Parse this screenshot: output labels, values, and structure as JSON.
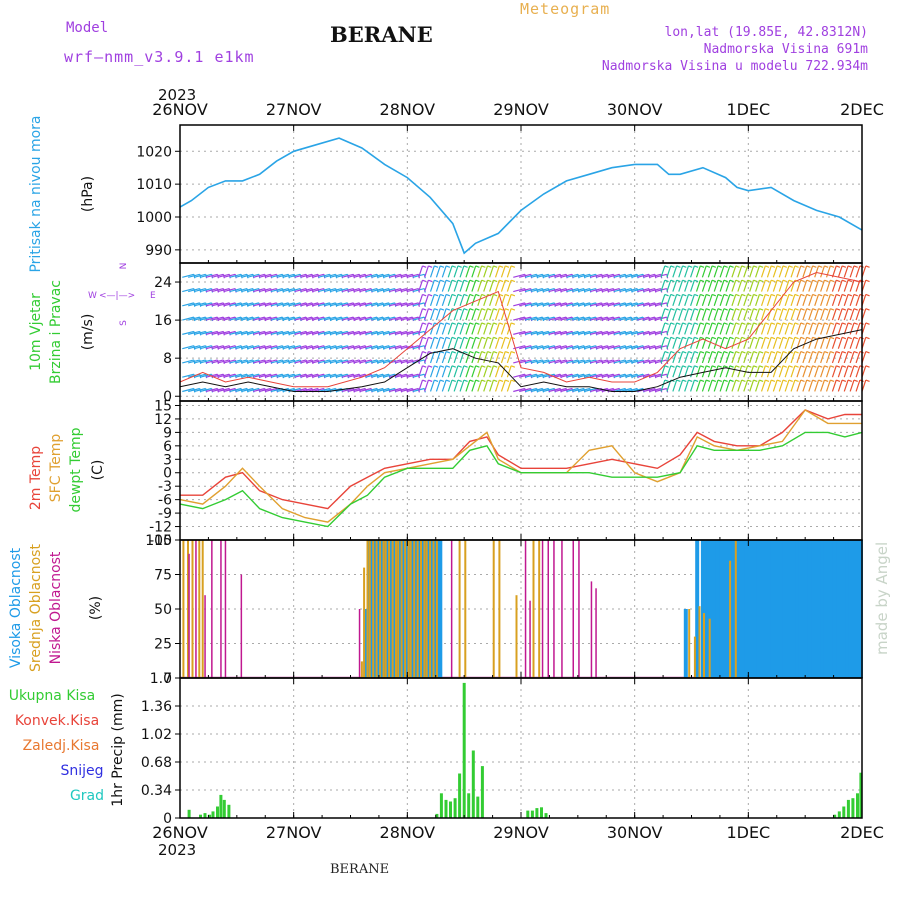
{
  "header": {
    "model_label": "Model",
    "model_value": "wrf—nmm_v3.9.1 e1km",
    "city": "BERANE",
    "meteogram": "Meteogram",
    "lonlat": "lon,lat (19.85E, 42.8312N)",
    "altitude": "Nadmorska Visina 691m",
    "model_altitude": "Nadmorska Visina u modelu 722.934m",
    "year_top": "2023",
    "year_bottom": "2023",
    "footer": "BERANE",
    "watermark": "made by Angel"
  },
  "x_axis": {
    "ticks": [
      "26NOV",
      "27NOV",
      "28NOV",
      "29NOV",
      "30NOV",
      "1DEC",
      "2DEC"
    ]
  },
  "colors": {
    "pressure": "#2aa4e6",
    "t2m": "#e8443a",
    "tsfc": "#e0a030",
    "dewpt": "#33cc33",
    "high_cloud": "#1e9be8",
    "mid_cloud": "#d8a020",
    "low_cloud": "#c01890",
    "precip": "#33cc33",
    "purple": "#a040e0"
  },
  "chart_data": [
    {
      "type": "line",
      "panel": "pressure",
      "ylabels": [
        "Pritisak na nivou mora",
        "(hPa)"
      ],
      "yticks": [
        990,
        1000,
        1010,
        1020
      ],
      "ylim": [
        986,
        1028
      ],
      "series": [
        {
          "x": [
            0,
            0.1,
            0.25,
            0.4,
            0.55,
            0.7,
            0.85,
            1.0,
            1.2,
            1.4,
            1.6,
            1.8,
            2.0,
            2.2,
            2.4,
            2.5,
            2.6,
            2.8,
            3.0,
            3.2,
            3.4,
            3.6,
            3.8,
            4.0,
            4.2,
            4.3,
            4.4,
            4.6,
            4.8,
            4.9,
            5.0,
            5.2,
            5.4,
            5.6,
            5.8,
            6.0
          ],
          "y": [
            1003,
            1005,
            1009,
            1011,
            1011,
            1013,
            1017,
            1020,
            1022,
            1024,
            1021,
            1016,
            1012,
            1006,
            998,
            989,
            992,
            995,
            1002,
            1007,
            1011,
            1013,
            1015,
            1016,
            1016,
            1013,
            1013,
            1015,
            1012,
            1009,
            1008,
            1009,
            1005,
            1002,
            1000,
            996
          ]
        }
      ]
    },
    {
      "type": "line",
      "panel": "wind",
      "ylabels": [
        "10m Vjetar",
        "Brzina i Pravac",
        "(m/s)"
      ],
      "compass": [
        "W",
        "<—|—>",
        "E",
        "S",
        "N"
      ],
      "yticks": [
        0,
        8,
        16,
        24
      ],
      "ylim": [
        -1,
        28
      ],
      "series": [
        {
          "name": "speed",
          "x": [
            0,
            0.2,
            0.4,
            0.6,
            0.8,
            1.0,
            1.3,
            1.6,
            1.8,
            2.0,
            2.2,
            2.4,
            2.6,
            2.8,
            3.0,
            3.2,
            3.4,
            3.6,
            3.8,
            4.0,
            4.2,
            4.4,
            4.6,
            4.8,
            5.0,
            5.2,
            5.4,
            5.6,
            5.8,
            6.0
          ],
          "y": [
            2,
            3,
            2,
            3,
            2,
            1,
            1,
            2,
            3,
            6,
            9,
            10,
            8,
            7,
            2,
            3,
            2,
            2,
            1,
            1,
            2,
            4,
            5,
            6,
            5,
            5,
            10,
            12,
            13,
            14
          ]
        },
        {
          "name": "gust",
          "x": [
            0,
            0.2,
            0.4,
            0.6,
            0.8,
            1.0,
            1.3,
            1.6,
            1.8,
            2.0,
            2.2,
            2.4,
            2.6,
            2.8,
            3.0,
            3.2,
            3.4,
            3.6,
            3.8,
            4.0,
            4.2,
            4.4,
            4.6,
            4.8,
            5.0,
            5.2,
            5.4,
            5.6,
            5.8,
            6.0
          ],
          "y": [
            3,
            5,
            3,
            4,
            3,
            2,
            2,
            4,
            6,
            10,
            14,
            18,
            20,
            22,
            6,
            5,
            3,
            4,
            3,
            3,
            5,
            10,
            12,
            10,
            12,
            18,
            24,
            26,
            25,
            24
          ]
        }
      ]
    },
    {
      "type": "line",
      "panel": "temperature",
      "ylabels": [
        "2m Temp",
        "SFC Temp",
        "dewpt Temp",
        "(C)"
      ],
      "yticks": [
        -15,
        -12,
        -9,
        -6,
        -3,
        0,
        3,
        6,
        9,
        12,
        15
      ],
      "ylim": [
        -15,
        16
      ],
      "series": [
        {
          "name": "2m Temp",
          "x": [
            0,
            0.2,
            0.4,
            0.55,
            0.7,
            0.9,
            1.1,
            1.3,
            1.5,
            1.65,
            1.8,
            2.0,
            2.2,
            2.4,
            2.55,
            2.7,
            2.8,
            3.0,
            3.2,
            3.4,
            3.6,
            3.8,
            4.0,
            4.2,
            4.4,
            4.55,
            4.7,
            4.9,
            5.1,
            5.3,
            5.5,
            5.7,
            5.85,
            6.0
          ],
          "y": [
            -5,
            -5,
            -1,
            0,
            -4,
            -6,
            -7,
            -8,
            -3,
            -1,
            1,
            2,
            3,
            3,
            7,
            8,
            4,
            1,
            1,
            1,
            2,
            3,
            2,
            1,
            4,
            9,
            7,
            6,
            6,
            9,
            14,
            12,
            13,
            13
          ]
        },
        {
          "name": "SFC Temp",
          "x": [
            0,
            0.2,
            0.4,
            0.55,
            0.7,
            0.9,
            1.1,
            1.3,
            1.5,
            1.65,
            1.8,
            2.0,
            2.2,
            2.4,
            2.55,
            2.7,
            2.8,
            3.0,
            3.2,
            3.4,
            3.6,
            3.8,
            4.0,
            4.2,
            4.4,
            4.55,
            4.7,
            4.9,
            5.1,
            5.3,
            5.5,
            5.7,
            5.85,
            6.0
          ],
          "y": [
            -6,
            -7,
            -3,
            1,
            -3,
            -8,
            -10,
            -11,
            -7,
            -3,
            0,
            1,
            2,
            3,
            6,
            9,
            3,
            0,
            0,
            0,
            5,
            6,
            0,
            -2,
            0,
            8,
            6,
            5,
            6,
            7,
            14,
            11,
            11,
            11
          ]
        },
        {
          "name": "dewpt Temp",
          "x": [
            0,
            0.2,
            0.4,
            0.55,
            0.7,
            0.9,
            1.1,
            1.3,
            1.5,
            1.65,
            1.8,
            2.0,
            2.2,
            2.4,
            2.55,
            2.7,
            2.8,
            3.0,
            3.2,
            3.4,
            3.6,
            3.8,
            4.0,
            4.2,
            4.4,
            4.55,
            4.7,
            4.9,
            5.1,
            5.3,
            5.5,
            5.7,
            5.85,
            6.0
          ],
          "y": [
            -7,
            -8,
            -6,
            -4,
            -8,
            -10,
            -11,
            -12,
            -7,
            -5,
            -1,
            1,
            1,
            1,
            5,
            6,
            2,
            0,
            0,
            0,
            0,
            -1,
            -1,
            -1,
            0,
            6,
            5,
            5,
            5,
            6,
            9,
            9,
            8,
            9
          ]
        }
      ]
    },
    {
      "type": "bar",
      "panel": "clouds",
      "ylabels": [
        "Visoka Oblacnost",
        "Srednja Oblacnost",
        "Niska Oblacnost",
        "(%)"
      ],
      "yticks": [
        0,
        25,
        50,
        75,
        100
      ],
      "ylim": [
        0,
        100
      ],
      "series": [
        {
          "name": "Visoka",
          "x": [
            1.63,
            1.66,
            1.68,
            1.71,
            1.74,
            1.77,
            1.8,
            1.82,
            1.85,
            1.88,
            1.91,
            1.93,
            1.96,
            1.99,
            2.02,
            2.04,
            2.07,
            2.1,
            2.13,
            2.16,
            2.18,
            2.21,
            2.24,
            2.27,
            2.29,
            4.45,
            4.55,
            4.6,
            4.62,
            4.65,
            4.68,
            4.71,
            4.73,
            4.76,
            4.79,
            4.82,
            4.85,
            4.87,
            4.9,
            4.93,
            4.96,
            4.98,
            5.01,
            5.04,
            5.07,
            5.09,
            5.12,
            5.15,
            5.18,
            5.21,
            5.23,
            5.26,
            5.29,
            5.32,
            5.34,
            5.37,
            5.4,
            5.43,
            5.46,
            5.48,
            5.51,
            5.54,
            5.57,
            5.6,
            5.62,
            5.65,
            5.68,
            5.71,
            5.73,
            5.76,
            5.79,
            5.82,
            5.85,
            5.87,
            5.9,
            5.93,
            5.96,
            5.99
          ],
          "values": [
            50,
            100,
            100,
            100,
            100,
            100,
            100,
            100,
            100,
            100,
            100,
            100,
            100,
            100,
            100,
            100,
            100,
            100,
            100,
            100,
            100,
            100,
            100,
            100,
            100,
            50,
            100,
            100,
            100,
            100,
            100,
            100,
            100,
            100,
            100,
            100,
            100,
            100,
            100,
            100,
            100,
            100,
            100,
            100,
            100,
            100,
            100,
            100,
            100,
            100,
            100,
            100,
            100,
            100,
            100,
            100,
            100,
            100,
            100,
            100,
            100,
            100,
            100,
            100,
            100,
            100,
            100,
            100,
            100,
            100,
            100,
            100,
            100,
            100,
            100,
            100,
            100,
            100
          ]
        },
        {
          "name": "Srednja",
          "x": [
            0.03,
            0.07,
            0.11,
            0.17,
            0.2,
            1.6,
            1.62,
            1.65,
            1.67,
            1.7,
            1.73,
            1.76,
            1.79,
            1.81,
            1.84,
            1.87,
            1.9,
            1.92,
            1.95,
            1.98,
            2.01,
            2.03,
            2.06,
            2.09,
            2.12,
            2.15,
            2.17,
            2.2,
            2.23,
            2.26,
            2.46,
            2.51,
            2.76,
            2.81,
            2.96,
            3.11,
            3.16,
            4.48,
            4.53,
            4.57,
            4.61,
            4.66,
            4.84,
            4.89
          ],
          "values": [
            100,
            100,
            100,
            100,
            100,
            12,
            80,
            100,
            100,
            100,
            100,
            100,
            100,
            100,
            100,
            100,
            100,
            100,
            100,
            100,
            100,
            100,
            100,
            100,
            100,
            100,
            100,
            100,
            100,
            100,
            100,
            100,
            100,
            100,
            60,
            100,
            100,
            50,
            30,
            52,
            47,
            43,
            85,
            100
          ]
        },
        {
          "name": "Niska",
          "x": [
            0.08,
            0.14,
            0.22,
            0.28,
            0.36,
            0.4,
            0.54,
            1.58,
            2.39,
            3.04,
            3.08,
            3.19,
            3.24,
            3.29,
            3.36,
            3.46,
            3.51,
            3.62,
            3.66
          ],
          "values": [
            90,
            100,
            60,
            100,
            100,
            100,
            75,
            50,
            100,
            100,
            56,
            100,
            100,
            100,
            100,
            100,
            100,
            70,
            65
          ]
        }
      ]
    },
    {
      "type": "bar",
      "panel": "precip",
      "ylabels": [
        "1hr Precip (mm)"
      ],
      "legend": [
        "Ukupna Kisa",
        "Konvek.Kisa",
        "Zaledj.Kisa",
        "Snijeg",
        "Grad"
      ],
      "yticks": [
        0,
        0.34,
        0.68,
        1.02,
        1.36,
        1.7
      ],
      "ylim": [
        0,
        1.7
      ],
      "series": [
        {
          "name": "Ukupna Kisa",
          "x": [
            0.08,
            0.18,
            0.22,
            0.26,
            0.29,
            0.33,
            0.36,
            0.39,
            0.43,
            2.26,
            2.3,
            2.34,
            2.38,
            2.42,
            2.46,
            2.5,
            2.54,
            2.58,
            2.62,
            2.66,
            3.06,
            3.1,
            3.14,
            3.18,
            3.22,
            5.76,
            5.8,
            5.84,
            5.88,
            5.92,
            5.96,
            5.99
          ],
          "values": [
            0.1,
            0.04,
            0.06,
            0.04,
            0.08,
            0.14,
            0.28,
            0.22,
            0.16,
            0.05,
            0.3,
            0.22,
            0.2,
            0.24,
            0.54,
            1.64,
            0.3,
            0.82,
            0.26,
            0.63,
            0.09,
            0.09,
            0.12,
            0.13,
            0.06,
            0.04,
            0.08,
            0.14,
            0.22,
            0.24,
            0.3,
            0.55
          ]
        }
      ]
    }
  ]
}
